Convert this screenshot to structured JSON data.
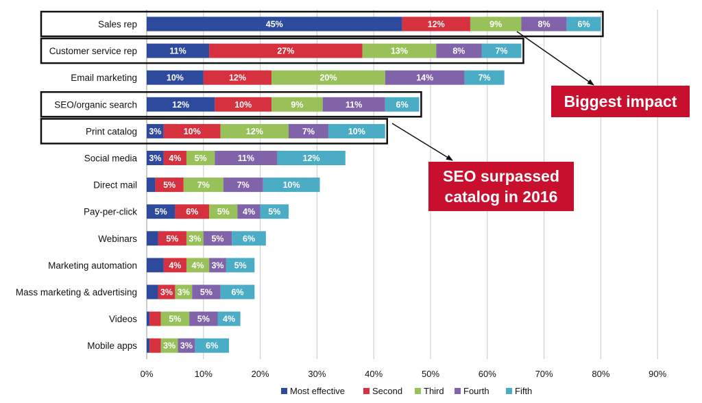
{
  "chart_data": {
    "type": "bar",
    "orientation": "horizontal",
    "stacked": true,
    "categories": [
      "Sales rep",
      "Customer service rep",
      "Email marketing",
      "SEO/organic search",
      "Print catalog",
      "Social media",
      "Direct mail",
      "Pay-per-click",
      "Webinars",
      "Marketing automation",
      "Mass marketing & advertising",
      "Videos",
      "Mobile apps"
    ],
    "series": [
      {
        "name": "Most effective",
        "color": "#2e4a9c",
        "values": [
          45,
          11,
          10,
          12,
          3,
          3,
          1.5,
          5,
          2,
          3,
          2,
          0.5,
          0.5
        ]
      },
      {
        "name": "Second",
        "color": "#d6313e",
        "values": [
          12,
          27,
          12,
          10,
          10,
          4,
          5,
          6,
          5,
          4,
          3,
          2,
          2
        ]
      },
      {
        "name": "Third",
        "color": "#98c15a",
        "values": [
          9,
          13,
          20,
          9,
          12,
          5,
          7,
          5,
          3,
          4,
          3,
          5,
          3
        ]
      },
      {
        "name": "Fourth",
        "color": "#8063a8",
        "values": [
          8,
          8,
          14,
          11,
          7,
          11,
          7,
          4,
          5,
          3,
          5,
          5,
          3
        ]
      },
      {
        "name": "Fifth",
        "color": "#4bacc6",
        "values": [
          6,
          7,
          7,
          6,
          10,
          12,
          10,
          5,
          6,
          5,
          6,
          4,
          6
        ]
      }
    ],
    "value_labels": [
      [
        "45%",
        "12%",
        "9%",
        "8%",
        "6%"
      ],
      [
        "11%",
        "27%",
        "13%",
        "8%",
        "7%"
      ],
      [
        "10%",
        "12%",
        "20%",
        "14%",
        "7%"
      ],
      [
        "12%",
        "10%",
        "9%",
        "11%",
        "6%"
      ],
      [
        "3%",
        "10%",
        "12%",
        "7%",
        "10%"
      ],
      [
        "3%",
        "4%",
        "5%",
        "11%",
        "12%"
      ],
      [
        "",
        "5%",
        "7%",
        "7%",
        "10%"
      ],
      [
        "5%",
        "6%",
        "5%",
        "4%",
        "5%"
      ],
      [
        "",
        "5%",
        "3%",
        "5%",
        "6%"
      ],
      [
        "",
        "4%",
        "4%",
        "3%",
        "5%"
      ],
      [
        "",
        "3%",
        "3%",
        "5%",
        "6%"
      ],
      [
        "",
        "",
        "5%",
        "5%",
        "4%"
      ],
      [
        "",
        "",
        "3%",
        "3%",
        "6%"
      ]
    ],
    "xlim": [
      0,
      90
    ],
    "x_ticks": [
      "0%",
      "10%",
      "20%",
      "30%",
      "40%",
      "50%",
      "60%",
      "70%",
      "80%",
      "90%"
    ],
    "grid": true,
    "legend_position": "bottom",
    "highlighted_categories": [
      "Sales rep",
      "Customer service rep",
      "SEO/organic search",
      "Print catalog"
    ],
    "annotations": [
      {
        "text": "Biggest impact",
        "color": "#c8102e"
      },
      {
        "text_lines": [
          "SEO surpassed",
          "catalog in 2016"
        ],
        "color": "#c8102e"
      }
    ]
  }
}
